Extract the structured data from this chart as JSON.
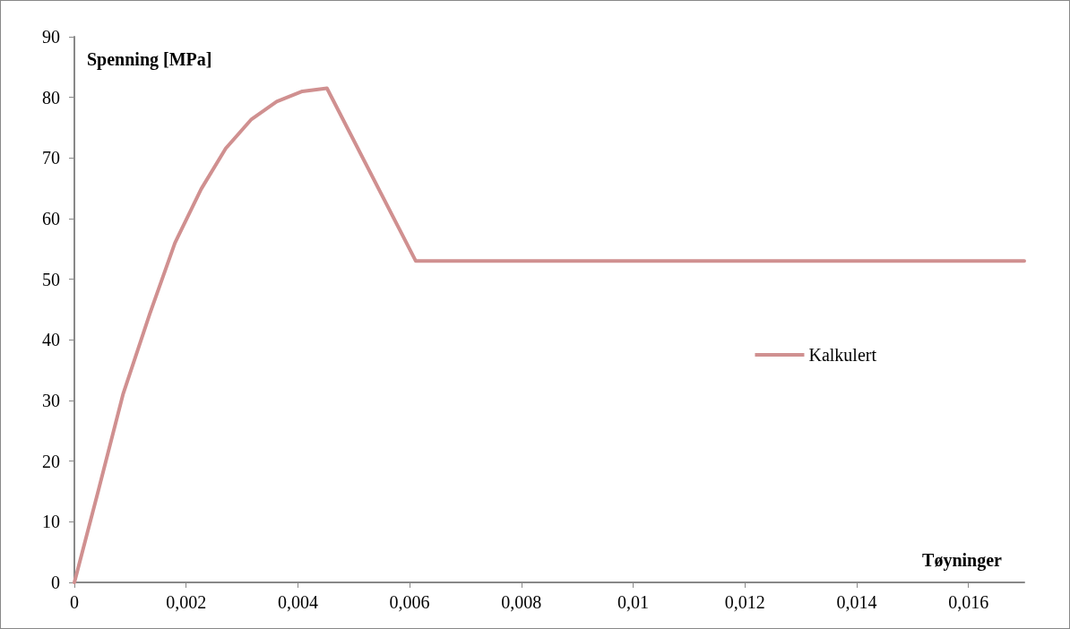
{
  "chart_data": {
    "type": "line",
    "xlabel": "Tøyninger",
    "ylabel": "Spenning [MPa]",
    "series": [
      {
        "name": "Kalkulert",
        "color": "#d09090",
        "x": [
          0,
          0.00043,
          0.00087,
          0.00135,
          0.0018,
          0.00227,
          0.00271,
          0.00317,
          0.00362,
          0.00408,
          0.00452,
          0.00611,
          0.017
        ],
        "values": [
          0,
          15.2,
          31,
          44.3,
          56,
          64.9,
          71.6,
          76.4,
          79.3,
          81,
          81.5,
          53,
          53
        ]
      }
    ],
    "xlim": [
      0,
      0.017
    ],
    "xticks": [
      0,
      {
        "value": 0.002,
        "label": "0,002"
      },
      {
        "value": 0.004,
        "label": "0,004"
      },
      {
        "value": 0.006,
        "label": "0,006"
      },
      {
        "value": 0.008,
        "label": "0,008"
      },
      {
        "value": 0.01,
        "label": "0,01"
      },
      {
        "value": 0.012,
        "label": "0,012"
      },
      {
        "value": 0.014,
        "label": "0,014"
      },
      {
        "value": 0.016,
        "label": "0,016"
      }
    ],
    "ylim": [
      0,
      90
    ],
    "yticks": [
      0,
      10,
      20,
      30,
      40,
      50,
      60,
      70,
      80,
      90
    ],
    "grid": false,
    "legend": "right",
    "marker": "none",
    "line_style": "solid"
  }
}
